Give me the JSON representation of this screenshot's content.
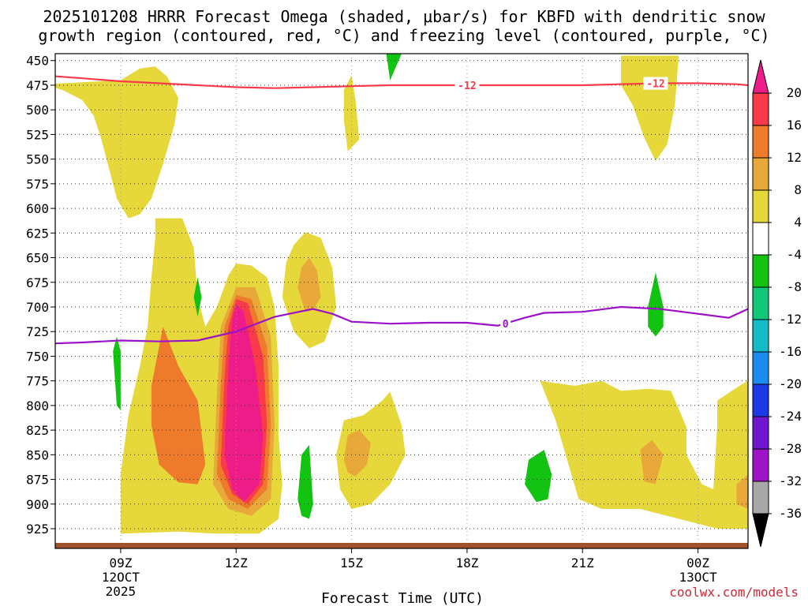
{
  "chart_data": {
    "type": "heatmap",
    "title_line1": "2025101208 HRRR Forecast Omega (shaded, μbar/s) for KBFD with dendritic snow",
    "title_line2": "growth region (contoured, red, °C) and freezing level (contoured, purple, °C)",
    "xlabel": "Forecast Time (UTC)",
    "credit": "coolwx.com/models",
    "x_range_hours": [
      7.3,
      25.3
    ],
    "y_range_hpa": [
      443,
      945
    ],
    "y_ticks": [
      450,
      475,
      500,
      525,
      550,
      575,
      600,
      625,
      650,
      675,
      700,
      725,
      750,
      775,
      800,
      825,
      850,
      875,
      900,
      925
    ],
    "x_ticks": [
      {
        "hour": 9,
        "label": "09Z",
        "sub": "12OCT",
        "year": "2025"
      },
      {
        "hour": 12,
        "label": "12Z",
        "sub": "",
        "year": ""
      },
      {
        "hour": 15,
        "label": "15Z",
        "sub": "",
        "year": ""
      },
      {
        "hour": 18,
        "label": "18Z",
        "sub": "",
        "year": ""
      },
      {
        "hour": 21,
        "label": "21Z",
        "sub": "",
        "year": ""
      },
      {
        "hour": 24,
        "label": "00Z",
        "sub": "13OCT",
        "year": ""
      }
    ],
    "colorbar": {
      "labels": [
        "20",
        "16",
        "12",
        "8",
        "4",
        "-4",
        "-8",
        "-12",
        "-16",
        "-20",
        "-24",
        "-28",
        "-32",
        "-36"
      ],
      "colors": [
        "#f83a4a",
        "#ee7a2c",
        "#e8a83a",
        "#e6d83a",
        "#ffffff",
        "#12c312",
        "#12c67a",
        "#14bcc8",
        "#1a8cf0",
        "#1a3ae8",
        "#6e16d0",
        "#9e12c8",
        "#a8a8a8"
      ],
      "top_cap": "#ee1c88",
      "bottom_cap": "#000000"
    },
    "omega_regions": [
      {
        "name": "yellow-upper-left",
        "color": "#e6d83a",
        "points": [
          [
            7.0,
            474
          ],
          [
            7.5,
            480
          ],
          [
            8.0,
            490
          ],
          [
            8.3,
            506
          ],
          [
            8.5,
            530
          ],
          [
            8.7,
            560
          ],
          [
            8.9,
            590
          ],
          [
            9.2,
            610
          ],
          [
            9.5,
            606
          ],
          [
            9.8,
            590
          ],
          [
            10.1,
            555
          ],
          [
            10.4,
            515
          ],
          [
            10.5,
            488
          ],
          [
            10.2,
            466
          ],
          [
            9.9,
            456
          ],
          [
            9.5,
            458
          ],
          [
            9.0,
            470
          ]
        ]
      },
      {
        "name": "yellow-main-left",
        "color": "#e6d83a",
        "points": [
          [
            9.0,
            930
          ],
          [
            9.0,
            870
          ],
          [
            9.2,
            810
          ],
          [
            9.5,
            760
          ],
          [
            9.7,
            720
          ],
          [
            9.8,
            670
          ],
          [
            9.9,
            630
          ],
          [
            9.9,
            610
          ],
          [
            10.6,
            610
          ],
          [
            10.9,
            640
          ],
          [
            11.0,
            690
          ],
          [
            11.2,
            720
          ],
          [
            11.5,
            700
          ],
          [
            11.8,
            668
          ],
          [
            12.0,
            656
          ],
          [
            12.4,
            658
          ],
          [
            12.8,
            670
          ],
          [
            13.0,
            700
          ],
          [
            13.1,
            760
          ],
          [
            13.1,
            830
          ],
          [
            13.2,
            880
          ],
          [
            13.1,
            915
          ],
          [
            12.6,
            930
          ],
          [
            11.5,
            930
          ],
          [
            10.5,
            928
          ]
        ]
      },
      {
        "name": "orange-left",
        "color": "#ee7a2c",
        "points": [
          [
            9.8,
            820
          ],
          [
            9.8,
            780
          ],
          [
            10.1,
            720
          ],
          [
            10.5,
            760
          ],
          [
            11.0,
            795
          ],
          [
            11.2,
            860
          ],
          [
            11.0,
            880
          ],
          [
            10.5,
            878
          ],
          [
            10.0,
            860
          ]
        ]
      },
      {
        "name": "gold-center",
        "color": "#e8a83a",
        "points": [
          [
            11.4,
            880
          ],
          [
            11.5,
            790
          ],
          [
            11.6,
            720
          ],
          [
            12.0,
            680
          ],
          [
            12.5,
            680
          ],
          [
            12.9,
            730
          ],
          [
            13.0,
            820
          ],
          [
            12.9,
            895
          ],
          [
            12.4,
            912
          ],
          [
            11.8,
            905
          ]
        ]
      },
      {
        "name": "orange-center",
        "color": "#ee7a2c",
        "points": [
          [
            11.5,
            870
          ],
          [
            11.6,
            780
          ],
          [
            11.7,
            720
          ],
          [
            12.0,
            688
          ],
          [
            12.4,
            692
          ],
          [
            12.8,
            740
          ],
          [
            12.9,
            820
          ],
          [
            12.8,
            885
          ],
          [
            12.3,
            905
          ],
          [
            11.8,
            895
          ]
        ]
      },
      {
        "name": "red-center",
        "color": "#f83a4a",
        "points": [
          [
            11.6,
            860
          ],
          [
            11.7,
            770
          ],
          [
            11.8,
            720
          ],
          [
            12.0,
            692
          ],
          [
            12.3,
            696
          ],
          [
            12.7,
            750
          ],
          [
            12.8,
            820
          ],
          [
            12.7,
            880
          ],
          [
            12.3,
            900
          ],
          [
            11.9,
            890
          ]
        ]
      },
      {
        "name": "magenta-core",
        "color": "#ee1c88",
        "points": [
          [
            11.7,
            850
          ],
          [
            11.8,
            760
          ],
          [
            11.9,
            712
          ],
          [
            12.0,
            697
          ],
          [
            12.2,
            705
          ],
          [
            12.5,
            760
          ],
          [
            12.7,
            830
          ],
          [
            12.6,
            880
          ],
          [
            12.2,
            898
          ],
          [
            11.9,
            885
          ]
        ]
      },
      {
        "name": "yellow-mid",
        "color": "#e6d83a",
        "points": [
          [
            13.2,
            690
          ],
          [
            13.3,
            655
          ],
          [
            13.5,
            637
          ],
          [
            13.8,
            624
          ],
          [
            14.2,
            630
          ],
          [
            14.5,
            660
          ],
          [
            14.6,
            700
          ],
          [
            14.3,
            735
          ],
          [
            13.9,
            742
          ],
          [
            13.5,
            725
          ]
        ]
      },
      {
        "name": "gold-mid",
        "color": "#e8a83a",
        "points": [
          [
            13.6,
            680
          ],
          [
            13.7,
            660
          ],
          [
            13.9,
            650
          ],
          [
            14.1,
            663
          ],
          [
            14.2,
            690
          ],
          [
            14.0,
            703
          ],
          [
            13.8,
            705
          ]
        ]
      },
      {
        "name": "yellow-thin-top",
        "color": "#e6d83a",
        "points": [
          [
            14.8,
            480
          ],
          [
            15.0,
            465
          ],
          [
            15.1,
            490
          ],
          [
            15.2,
            530
          ],
          [
            14.9,
            542
          ],
          [
            14.8,
            510
          ]
        ]
      },
      {
        "name": "yellow-lower-mid",
        "color": "#e6d83a",
        "points": [
          [
            14.6,
            850
          ],
          [
            14.8,
            815
          ],
          [
            15.3,
            810
          ],
          [
            15.8,
            795
          ],
          [
            16.0,
            786
          ],
          [
            16.3,
            820
          ],
          [
            16.4,
            850
          ],
          [
            16.0,
            880
          ],
          [
            15.5,
            900
          ],
          [
            15.0,
            905
          ],
          [
            14.7,
            885
          ]
        ]
      },
      {
        "name": "gold-lower-mid",
        "color": "#e8a83a",
        "points": [
          [
            14.8,
            855
          ],
          [
            14.9,
            830
          ],
          [
            15.2,
            825
          ],
          [
            15.5,
            838
          ],
          [
            15.4,
            860
          ],
          [
            15.1,
            872
          ],
          [
            14.9,
            868
          ]
        ]
      },
      {
        "name": "yellow-right-upper",
        "color": "#e6d83a",
        "points": [
          [
            22.0,
            445
          ],
          [
            23.5,
            445
          ],
          [
            23.4,
            495
          ],
          [
            23.2,
            535
          ],
          [
            22.9,
            552
          ],
          [
            22.6,
            528
          ],
          [
            22.3,
            495
          ],
          [
            22.0,
            475
          ]
        ]
      },
      {
        "name": "yellow-right-lower",
        "color": "#e6d83a",
        "points": [
          [
            19.9,
            775
          ],
          [
            20.8,
            780
          ],
          [
            21.5,
            775
          ],
          [
            22.0,
            785
          ],
          [
            22.7,
            783
          ],
          [
            23.3,
            785
          ],
          [
            23.7,
            822
          ],
          [
            23.7,
            850
          ],
          [
            24.1,
            880
          ],
          [
            24.4,
            885
          ],
          [
            24.5,
            820
          ],
          [
            24.5,
            795
          ],
          [
            25.0,
            782
          ],
          [
            25.5,
            770
          ],
          [
            25.8,
            770
          ],
          [
            25.8,
            925
          ],
          [
            24.5,
            925
          ],
          [
            23.5,
            915
          ],
          [
            22.5,
            905
          ],
          [
            21.5,
            905
          ],
          [
            20.9,
            895
          ],
          [
            20.6,
            855
          ],
          [
            20.3,
            815
          ]
        ]
      },
      {
        "name": "gold-right",
        "color": "#e8a83a",
        "points": [
          [
            22.5,
            845
          ],
          [
            22.8,
            835
          ],
          [
            23.1,
            850
          ],
          [
            22.9,
            880
          ],
          [
            22.6,
            877
          ]
        ]
      },
      {
        "name": "gold-far-right",
        "color": "#e8a83a",
        "points": [
          [
            25.0,
            880
          ],
          [
            25.3,
            870
          ],
          [
            25.3,
            905
          ],
          [
            25.0,
            900
          ]
        ]
      },
      {
        "name": "green-top",
        "color": "#12c312",
        "points": [
          [
            15.9,
            443
          ],
          [
            16.3,
            443
          ],
          [
            16.0,
            470
          ]
        ]
      },
      {
        "name": "green-small-left",
        "color": "#12c312",
        "points": [
          [
            8.8,
            745
          ],
          [
            8.9,
            730
          ],
          [
            9.0,
            745
          ],
          [
            9.0,
            805
          ],
          [
            8.9,
            800
          ]
        ]
      },
      {
        "name": "green-tiny",
        "color": "#12c312",
        "points": [
          [
            10.9,
            690
          ],
          [
            11.0,
            670
          ],
          [
            11.1,
            690
          ],
          [
            11.0,
            710
          ]
        ]
      },
      {
        "name": "green-low-mid",
        "color": "#12c312",
        "points": [
          [
            13.6,
            895
          ],
          [
            13.7,
            850
          ],
          [
            13.9,
            840
          ],
          [
            14.0,
            900
          ],
          [
            13.9,
            915
          ],
          [
            13.7,
            912
          ]
        ]
      },
      {
        "name": "green-low-right",
        "color": "#12c312",
        "points": [
          [
            19.5,
            880
          ],
          [
            19.6,
            855
          ],
          [
            20.0,
            845
          ],
          [
            20.2,
            870
          ],
          [
            20.1,
            895
          ],
          [
            19.8,
            898
          ]
        ]
      },
      {
        "name": "green-right",
        "color": "#12c312",
        "points": [
          [
            22.7,
            700
          ],
          [
            22.9,
            665
          ],
          [
            23.1,
            700
          ],
          [
            23.1,
            720
          ],
          [
            22.9,
            730
          ],
          [
            22.7,
            720
          ]
        ]
      }
    ],
    "contours": [
      {
        "name": "dendritic-minus-12",
        "value": -12,
        "label": "-12",
        "color": "#f83a4a",
        "points": [
          [
            7.3,
            466
          ],
          [
            8,
            468
          ],
          [
            9,
            471
          ],
          [
            10,
            473
          ],
          [
            11,
            475
          ],
          [
            12,
            477
          ],
          [
            13,
            478
          ],
          [
            14,
            477
          ],
          [
            15,
            476
          ],
          [
            16,
            475
          ],
          [
            17,
            475
          ],
          [
            18,
            475
          ],
          [
            19,
            475
          ],
          [
            20,
            475
          ],
          [
            21,
            475
          ],
          [
            22,
            474
          ],
          [
            23,
            473
          ],
          [
            24,
            473
          ],
          [
            25,
            474
          ],
          [
            25.3,
            475
          ]
        ],
        "label_hours": [
          18,
          22.9
        ]
      },
      {
        "name": "freezing-level-0",
        "value": 0,
        "label": "0",
        "color": "#9c12c8",
        "points": [
          [
            7.3,
            737
          ],
          [
            8,
            736
          ],
          [
            9,
            734
          ],
          [
            10,
            735
          ],
          [
            11,
            734
          ],
          [
            12,
            725
          ],
          [
            13,
            710
          ],
          [
            14,
            702
          ],
          [
            14.5,
            707
          ],
          [
            15,
            715
          ],
          [
            16,
            717
          ],
          [
            17,
            716
          ],
          [
            18,
            716
          ],
          [
            18.8,
            719
          ],
          [
            19.5,
            711
          ],
          [
            20,
            706
          ],
          [
            21,
            705
          ],
          [
            22,
            700
          ],
          [
            23,
            702
          ],
          [
            24,
            707
          ],
          [
            24.8,
            711
          ],
          [
            25.3,
            702
          ]
        ],
        "label_hours": [
          19.0
        ]
      }
    ]
  }
}
